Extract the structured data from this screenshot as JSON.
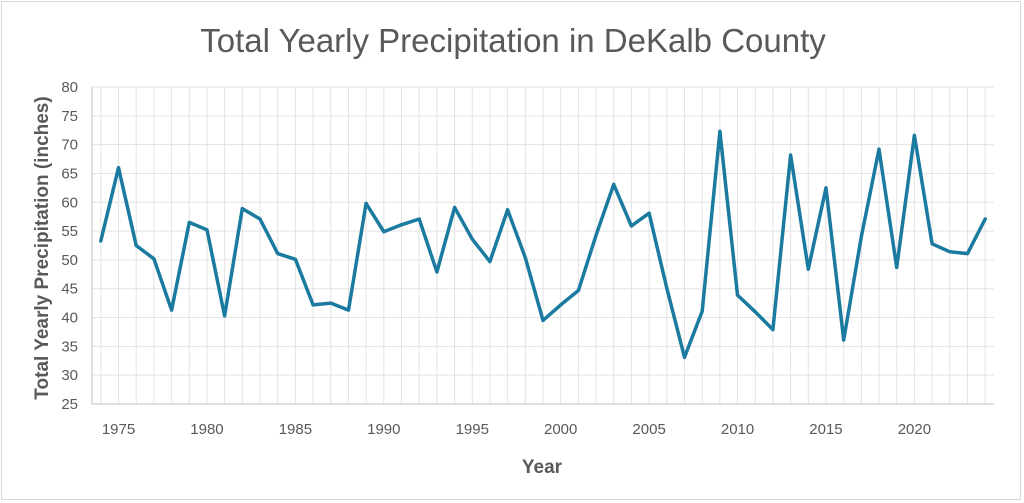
{
  "chart_data": {
    "type": "line",
    "title": "Total Yearly Precipitation in DeKalb County",
    "xlabel": "Year",
    "ylabel": "Total Yearly Precipitation (inches)",
    "ylim": [
      25,
      80
    ],
    "xlim": [
      1973.5,
      2024.5
    ],
    "yticks": [
      25,
      30,
      35,
      40,
      45,
      50,
      55,
      60,
      65,
      70,
      75,
      80
    ],
    "xticks": [
      1975,
      1980,
      1985,
      1990,
      1995,
      2000,
      2005,
      2010,
      2015,
      2020
    ],
    "grid": true,
    "series_color": "#1b7a9f",
    "x": [
      1974,
      1975,
      1976,
      1977,
      1978,
      1979,
      1980,
      1981,
      1982,
      1983,
      1984,
      1985,
      1986,
      1987,
      1988,
      1989,
      1990,
      1991,
      1992,
      1993,
      1994,
      1995,
      1996,
      1997,
      1998,
      1999,
      2000,
      2001,
      2002,
      2003,
      2004,
      2005,
      2006,
      2007,
      2008,
      2009,
      2010,
      2011,
      2012,
      2013,
      2014,
      2015,
      2016,
      2017,
      2018,
      2019,
      2020,
      2021,
      2022,
      2023,
      2024
    ],
    "series": [
      {
        "values": [
          53.3,
          66.0,
          52.5,
          50.2,
          41.3,
          56.5,
          55.2,
          40.3,
          58.9,
          57.1,
          51.1,
          50.1,
          42.2,
          42.5,
          41.3,
          59.8,
          54.9,
          56.1,
          57.1,
          47.9,
          59.1,
          53.6,
          49.7,
          58.7,
          50.4,
          39.5,
          42.2,
          44.7,
          54.3,
          63.1,
          55.9,
          58.1,
          45.1,
          33.1,
          41.1,
          72.3,
          43.9,
          41.0,
          37.9,
          68.2,
          48.4,
          62.5,
          36.1,
          54.1,
          69.2,
          48.7,
          71.6,
          52.8,
          51.4,
          51.1,
          57.1
        ]
      }
    ]
  }
}
